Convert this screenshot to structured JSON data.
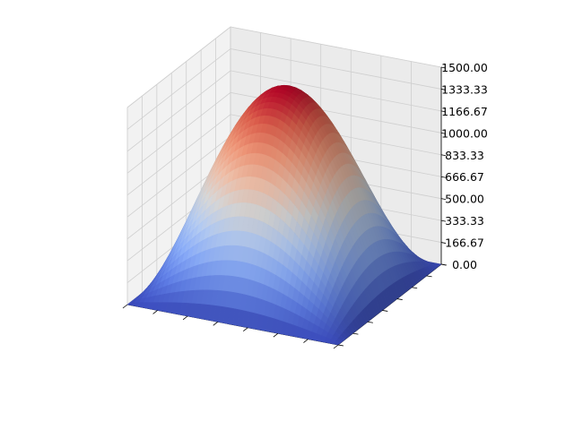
{
  "chart_data": {
    "type": "surface",
    "title": "",
    "xlabel": "",
    "ylabel": "",
    "zlabel": "",
    "colormap": "coolwarm",
    "zlim": [
      0,
      1500
    ],
    "z_ticks": [
      {
        "value": 0,
        "label": "0.00"
      },
      {
        "value": 166.67,
        "label": "166.67"
      },
      {
        "value": 333.33,
        "label": "333.33"
      },
      {
        "value": 500,
        "label": "500.00"
      },
      {
        "value": 666.67,
        "label": "666.67"
      },
      {
        "value": 833.33,
        "label": "833.33"
      },
      {
        "value": 1000,
        "label": "1000.00"
      },
      {
        "value": 1166.67,
        "label": "1166.67"
      },
      {
        "value": 1333.33,
        "label": "1333.33"
      },
      {
        "value": 1500,
        "label": "1500.00"
      }
    ],
    "x_tick_labels_shown": false,
    "y_tick_labels_shown": false,
    "grid": true,
    "surface": {
      "shape": "dome",
      "peak_z": 1500,
      "corner_z": 0
    }
  }
}
